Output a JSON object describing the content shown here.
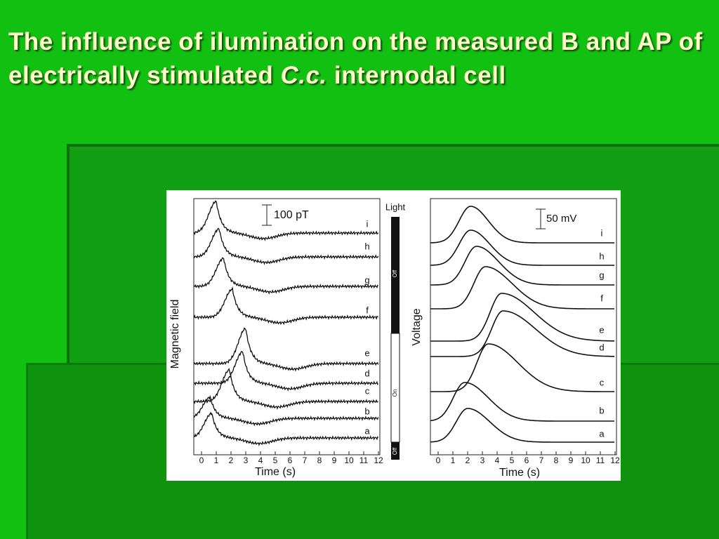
{
  "title": {
    "before": "The influence of ilumination on the measured B and AP of electrically stimulated ",
    "italic": "C.c.",
    "after": " internodal cell"
  },
  "figure": {
    "left_panel": {
      "y_label": "Magnetic field",
      "x_label": "Time (s)",
      "scale_bar": "100 pT",
      "x_ticks": [
        0,
        1,
        2,
        3,
        4,
        5,
        6,
        7,
        8,
        9,
        10,
        11,
        12
      ],
      "trace_labels": [
        "i",
        "h",
        "g",
        "f",
        "e",
        "d",
        "c",
        "b",
        "a"
      ]
    },
    "light_bar": {
      "title": "Light",
      "segments": [
        "Off",
        "On",
        "Off"
      ]
    },
    "right_panel": {
      "y_label": "Voltage",
      "x_label": "Time (s)",
      "scale_bar": "50 mV",
      "x_ticks": [
        0,
        1,
        2,
        3,
        4,
        5,
        6,
        7,
        8,
        9,
        10,
        11,
        12
      ],
      "trace_labels": [
        "i",
        "h",
        "g",
        "f",
        "e",
        "d",
        "c",
        "b",
        "a"
      ]
    }
  }
}
